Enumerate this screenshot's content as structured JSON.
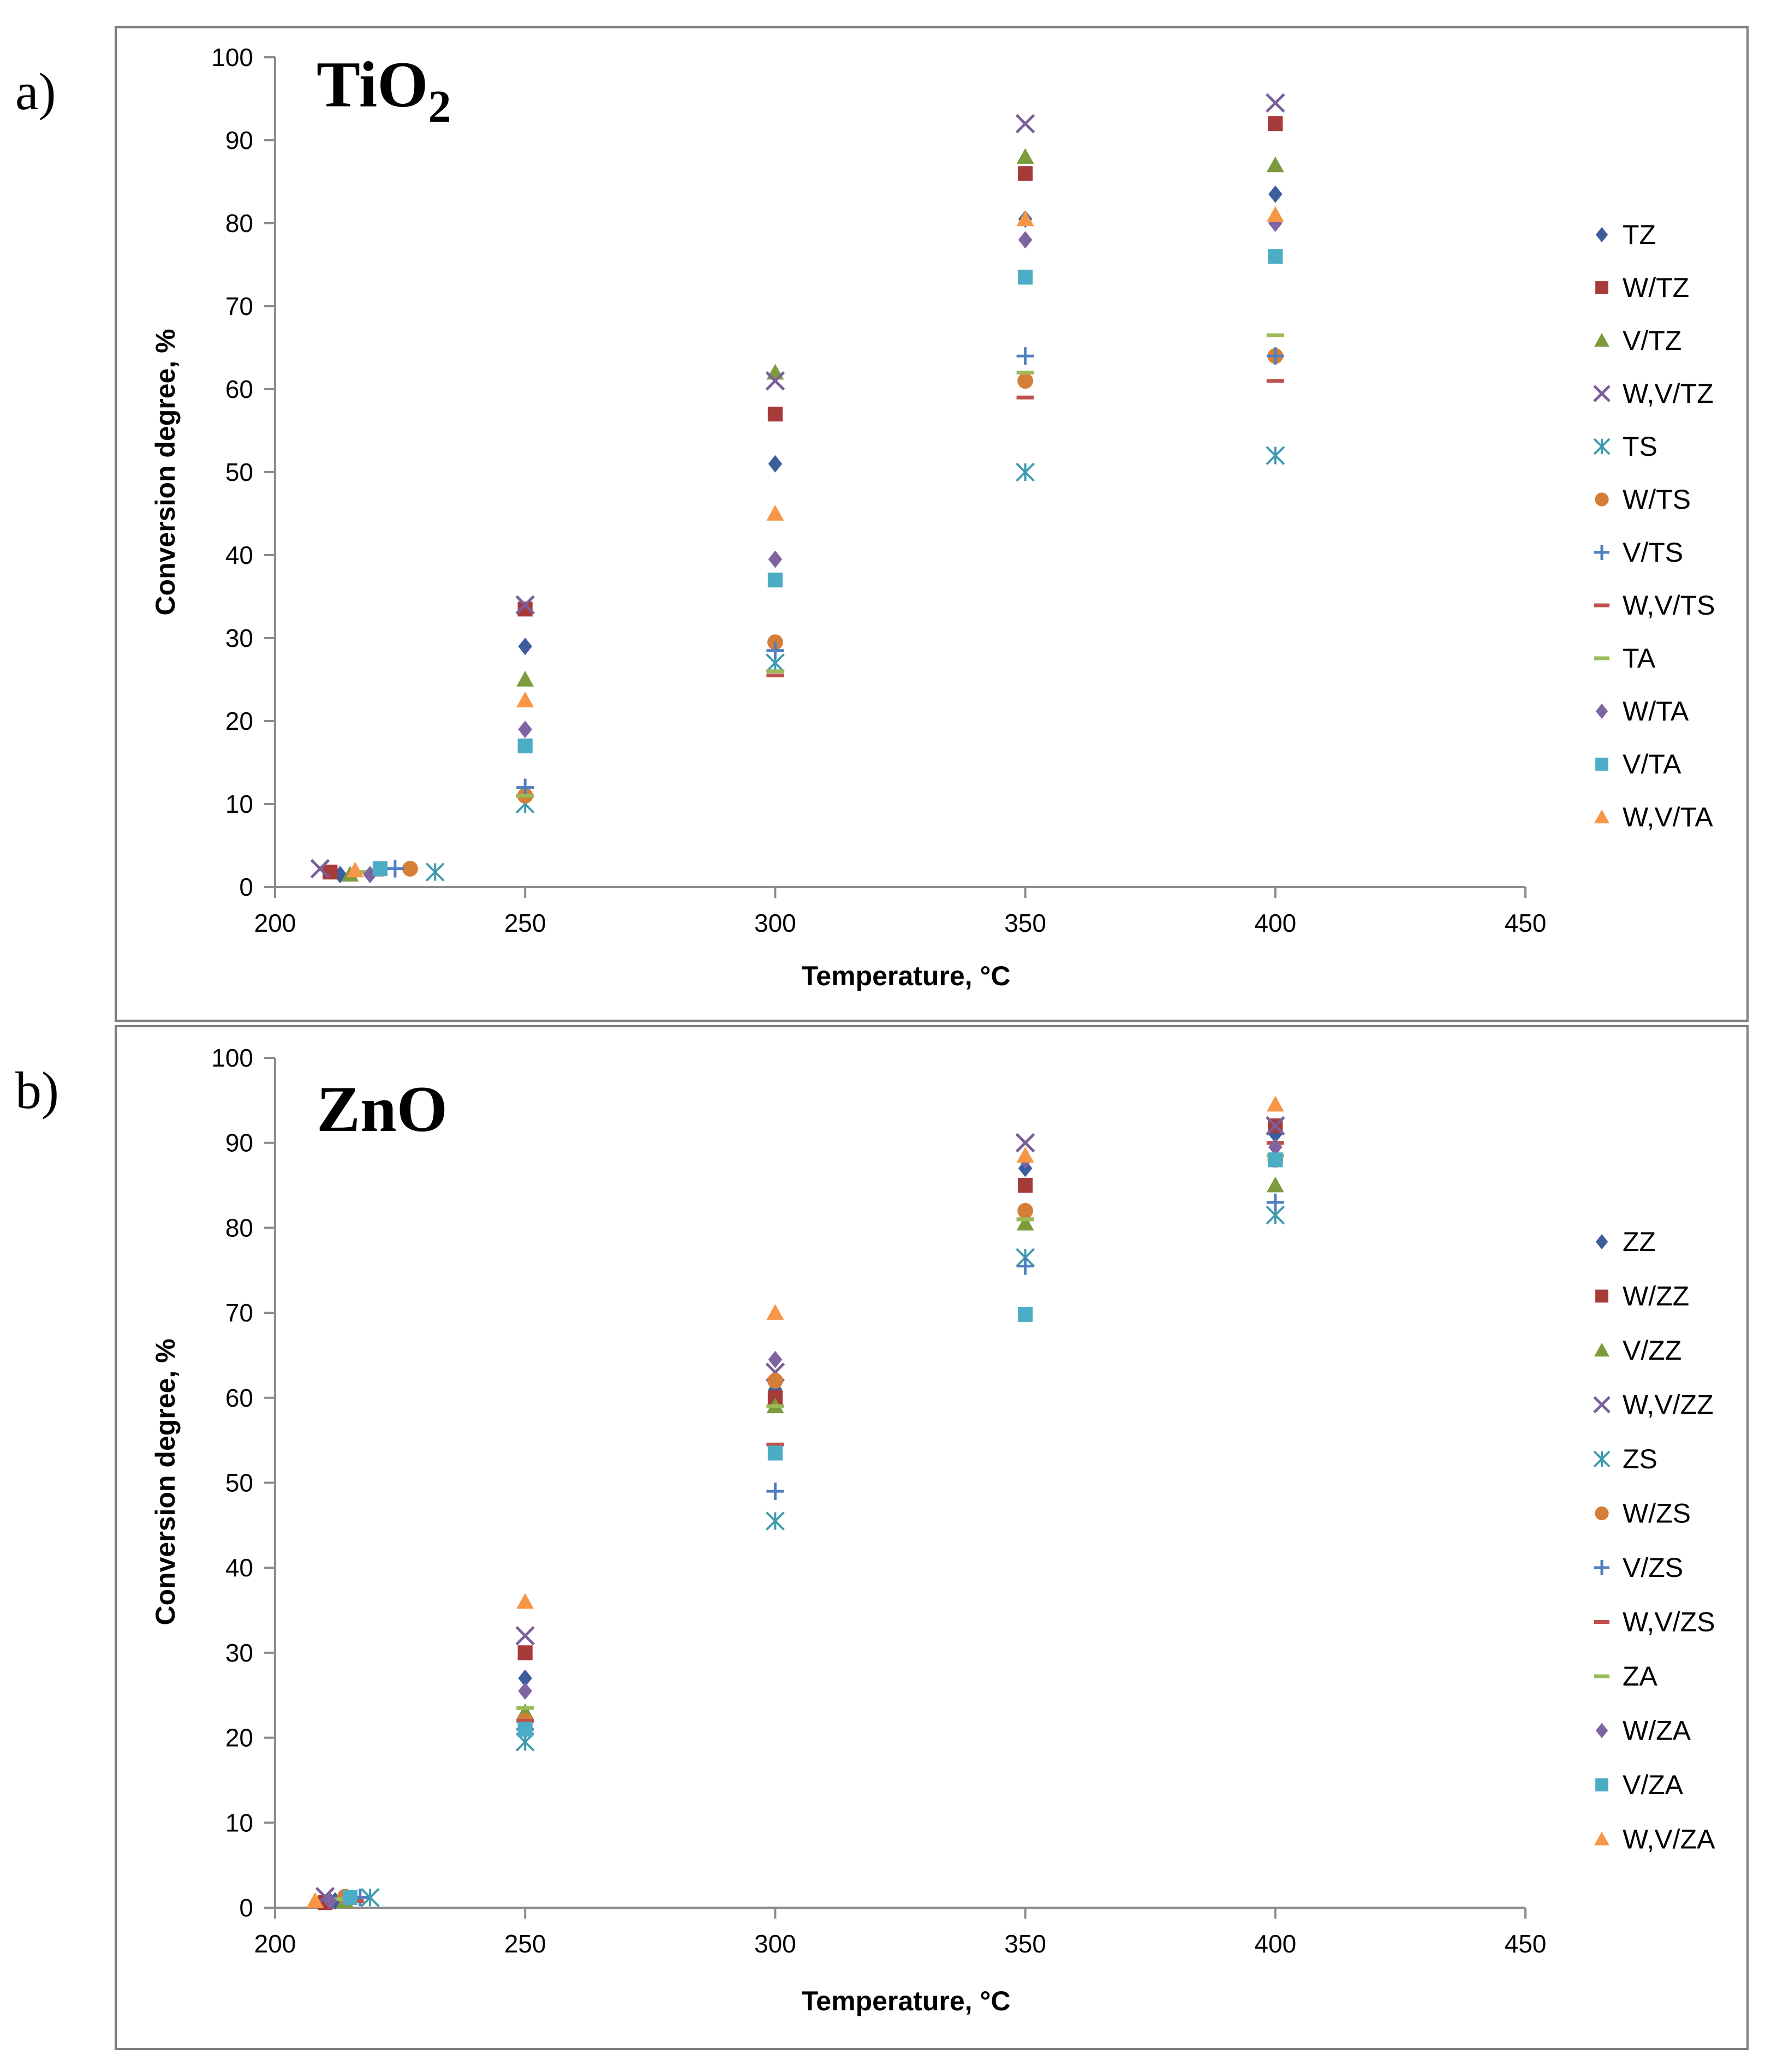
{
  "figure": {
    "panels": [
      {
        "label": "a)",
        "material": "TiO",
        "material_sub": "2",
        "legend": [
          "TZ",
          "W/TZ",
          "V/TZ",
          "W,V/TZ",
          "TS",
          "W/TS",
          "V/TS",
          "W,V/TS",
          "TA",
          "W/TA",
          "V/TA",
          "W,V/TA"
        ]
      },
      {
        "label": "b)",
        "material": "ZnO",
        "material_sub": "",
        "legend": [
          "ZZ",
          "W/ZZ",
          "V/ZZ",
          "W,V/ZZ",
          "ZS",
          "W/ZS",
          "V/ZS",
          "W,V/ZS",
          "ZA",
          "W/ZA",
          "V/ZA",
          "W,V/ZA"
        ]
      }
    ]
  },
  "chart_data": [
    {
      "type": "scatter",
      "title": "TiO2",
      "xlabel": "Temperature, °C",
      "ylabel": "Conversion degree, %",
      "xlim": [
        200,
        450
      ],
      "ylim": [
        0,
        100
      ],
      "xticks": [
        200,
        250,
        300,
        350,
        400,
        450
      ],
      "yticks": [
        0,
        10,
        20,
        30,
        40,
        50,
        60,
        70,
        80,
        90,
        100
      ],
      "legend_position": "right",
      "series": [
        {
          "name": "TZ",
          "marker": "diamond",
          "color": "#3C5E9C",
          "x": [
            213,
            250,
            300,
            350,
            400
          ],
          "y": [
            1.5,
            29,
            51,
            80.5,
            83.5
          ]
        },
        {
          "name": "W/TZ",
          "marker": "square",
          "color": "#A63B3A",
          "x": [
            211,
            250,
            300,
            350,
            400
          ],
          "y": [
            1.8,
            33.5,
            57,
            86,
            92
          ]
        },
        {
          "name": "V/TZ",
          "marker": "triangle",
          "color": "#7B9B3C",
          "x": [
            215,
            250,
            300,
            350,
            400
          ],
          "y": [
            1.5,
            25,
            62,
            88,
            87
          ]
        },
        {
          "name": "W,V/TZ",
          "marker": "x",
          "color": "#7B5F99",
          "x": [
            209,
            250,
            300,
            350,
            400
          ],
          "y": [
            2.2,
            34,
            61,
            92,
            94.5
          ]
        },
        {
          "name": "TS",
          "marker": "asterisk",
          "color": "#3E9BAF",
          "x": [
            232,
            250,
            300,
            350,
            400
          ],
          "y": [
            1.8,
            10,
            27,
            50,
            52
          ]
        },
        {
          "name": "W/TS",
          "marker": "circle",
          "color": "#D47E37",
          "x": [
            227,
            250,
            300,
            350,
            400
          ],
          "y": [
            2.2,
            11,
            29.5,
            61,
            64
          ]
        },
        {
          "name": "V/TS",
          "marker": "plus",
          "color": "#4F7FC0",
          "x": [
            224,
            250,
            300,
            350,
            400
          ],
          "y": [
            2.2,
            12,
            28.5,
            64,
            64
          ]
        },
        {
          "name": "W,V/TS",
          "marker": "dash",
          "color": "#C0504D",
          "x": [
            220,
            250,
            300,
            350,
            400
          ],
          "y": [
            1.5,
            11,
            25.5,
            59,
            61
          ]
        },
        {
          "name": "TA",
          "marker": "dash",
          "color": "#9BBB59",
          "x": [
            217,
            250,
            300,
            350,
            400
          ],
          "y": [
            1.8,
            11,
            26,
            62,
            66.5
          ]
        },
        {
          "name": "W/TA",
          "marker": "diamond",
          "color": "#8064A2",
          "x": [
            219,
            250,
            300,
            350,
            400
          ],
          "y": [
            1.5,
            19,
            39.5,
            78,
            80
          ]
        },
        {
          "name": "V/TA",
          "marker": "square",
          "color": "#4BACC6",
          "x": [
            221,
            250,
            300,
            350,
            400
          ],
          "y": [
            2.2,
            17,
            37,
            73.5,
            76
          ]
        },
        {
          "name": "W,V/TA",
          "marker": "triangle",
          "color": "#F79646",
          "x": [
            216,
            250,
            300,
            350,
            400
          ],
          "y": [
            2,
            22.5,
            45,
            80.5,
            81
          ]
        }
      ]
    },
    {
      "type": "scatter",
      "title": "ZnO",
      "xlabel": "Temperature, °C",
      "ylabel": "Conversion degree, %",
      "xlim": [
        200,
        450
      ],
      "ylim": [
        0,
        100
      ],
      "xticks": [
        200,
        250,
        300,
        350,
        400,
        450
      ],
      "yticks": [
        0,
        10,
        20,
        30,
        40,
        50,
        60,
        70,
        80,
        90,
        100
      ],
      "legend_position": "right",
      "series": [
        {
          "name": "ZZ",
          "marker": "diamond",
          "color": "#3C5E9C",
          "x": [
            212,
            250,
            300,
            350,
            400
          ],
          "y": [
            0.8,
            27,
            61,
            87,
            91
          ]
        },
        {
          "name": "W/ZZ",
          "marker": "square",
          "color": "#A63B3A",
          "x": [
            210,
            250,
            300,
            350,
            400
          ],
          "y": [
            0.6,
            30,
            60,
            85,
            92
          ]
        },
        {
          "name": "V/ZZ",
          "marker": "triangle",
          "color": "#7B9B3C",
          "x": [
            214,
            250,
            300,
            350,
            400
          ],
          "y": [
            0.8,
            23,
            59,
            80.5,
            85
          ]
        },
        {
          "name": "W,V/ZZ",
          "marker": "x",
          "color": "#7B5F99",
          "x": [
            210,
            250,
            300,
            350,
            400
          ],
          "y": [
            1.3,
            32,
            63,
            90,
            92
          ]
        },
        {
          "name": "ZS",
          "marker": "asterisk",
          "color": "#3E9BAF",
          "x": [
            219,
            250,
            300,
            350,
            400
          ],
          "y": [
            1.2,
            19.5,
            45.5,
            76.5,
            81.5
          ]
        },
        {
          "name": "W/ZS",
          "marker": "circle",
          "color": "#D47E37",
          "x": [
            214,
            250,
            300,
            350,
            400
          ],
          "y": [
            1.3,
            22,
            62,
            82,
            88
          ]
        },
        {
          "name": "V/ZS",
          "marker": "plus",
          "color": "#4F7FC0",
          "x": [
            217,
            250,
            300,
            350,
            400
          ],
          "y": [
            1.2,
            21,
            49,
            75.5,
            83
          ]
        },
        {
          "name": "W,V/ZS",
          "marker": "dash",
          "color": "#C0504D",
          "x": [
            216,
            250,
            300,
            350,
            400
          ],
          "y": [
            0.8,
            22,
            54.5,
            81,
            90
          ]
        },
        {
          "name": "ZA",
          "marker": "dash",
          "color": "#9BBB59",
          "x": [
            213,
            250,
            300,
            350,
            400
          ],
          "y": [
            1.0,
            23.5,
            59,
            81,
            88.5
          ]
        },
        {
          "name": "W/ZA",
          "marker": "diamond",
          "color": "#8064A2",
          "x": [
            211,
            250,
            300,
            350,
            400
          ],
          "y": [
            0.8,
            25.5,
            64.5,
            88,
            89.5
          ]
        },
        {
          "name": "V/ZA",
          "marker": "square",
          "color": "#4BACC6",
          "x": [
            215,
            250,
            300,
            350,
            400
          ],
          "y": [
            1.2,
            21,
            53.5,
            69.8,
            88
          ]
        },
        {
          "name": "W,V/ZA",
          "marker": "triangle",
          "color": "#F79646",
          "x": [
            208,
            250,
            300,
            350,
            400
          ],
          "y": [
            0.8,
            36,
            70,
            88.5,
            94.5
          ]
        }
      ]
    }
  ]
}
